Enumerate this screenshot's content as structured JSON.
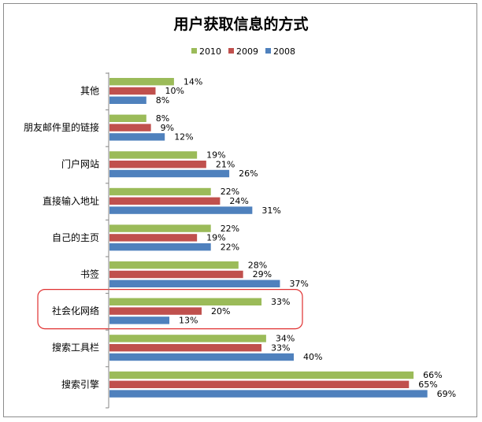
{
  "chart_data": {
    "type": "bar",
    "orientation": "horizontal",
    "title": "用户获取信息的方式",
    "categories": [
      "其他",
      "朋友邮件里的链接",
      "门户网站",
      "直接输入地址",
      "自己的主页",
      "书签",
      "社会化网络",
      "搜索工具栏",
      "搜索引擎"
    ],
    "series": [
      {
        "name": "2010",
        "color": "#9bbb59",
        "values": [
          14,
          8,
          19,
          22,
          22,
          28,
          33,
          34,
          66
        ],
        "labels": [
          "14%",
          "8%",
          "19%",
          "22%",
          "22%",
          "28%",
          "33%",
          "34%",
          "66%"
        ]
      },
      {
        "name": "2009",
        "color": "#c0504d",
        "values": [
          10,
          9,
          21,
          24,
          19,
          29,
          20,
          33,
          65
        ],
        "labels": [
          "10%",
          "9%",
          "21%",
          "24%",
          "19%",
          "29%",
          "20%",
          "33%",
          "65%"
        ]
      },
      {
        "name": "2008",
        "color": "#4f81bd",
        "values": [
          8,
          12,
          26,
          31,
          22,
          37,
          13,
          40,
          69
        ],
        "labels": [
          "8%",
          "12%",
          "26%",
          "31%",
          "22%",
          "37%",
          "13%",
          "40%",
          "69%"
        ]
      }
    ],
    "legend": [
      "2010",
      "2009",
      "2008"
    ],
    "legend_position": "top",
    "highlighted_category": "社会化网络",
    "highlight_color": "#e03030",
    "xlim": [
      0,
      100
    ],
    "grid": false
  }
}
